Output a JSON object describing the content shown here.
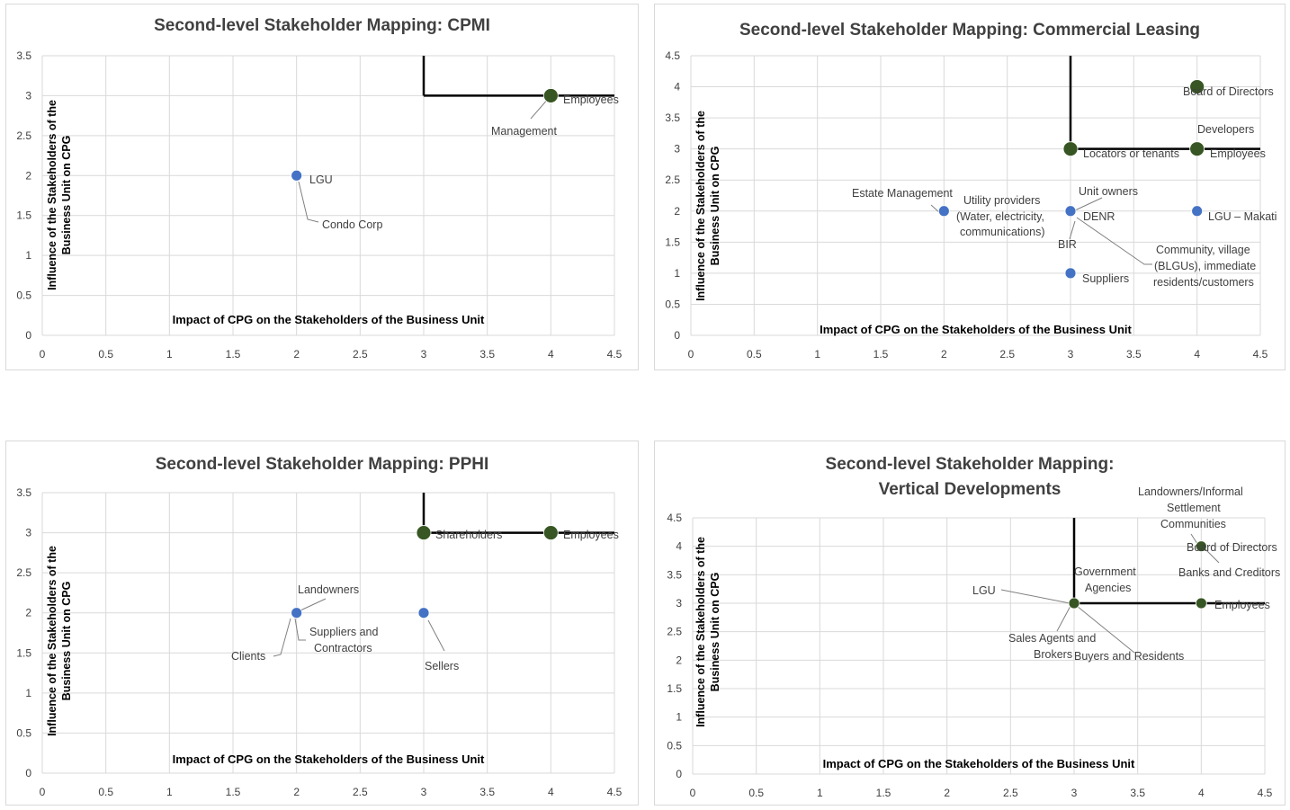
{
  "chart_data": [
    {
      "type": "scatter",
      "title": "Second-level Stakeholder Mapping: CPMI",
      "xlabel": "Impact of CPG on the Stakeholders of the Business Unit",
      "ylabel": [
        "Influence of the Stakeholders of the",
        "Business Unit on CPG"
      ],
      "xlim": [
        0,
        4.5
      ],
      "ylim": [
        0,
        3.5
      ],
      "xticks": [
        "0",
        "0.5",
        "1",
        "1.5",
        "2",
        "2.5",
        "3",
        "3.5",
        "4",
        "4.5"
      ],
      "yticks": [
        "0",
        "0.5",
        "1",
        "1.5",
        "2",
        "2.5",
        "3",
        "3.5"
      ],
      "grid": true,
      "quadrant_lines": [
        {
          "type": "v",
          "at": 3,
          "from": 3,
          "to": 3.5
        },
        {
          "type": "h",
          "at": 3,
          "from": 3,
          "to": 4.5
        }
      ],
      "points": [
        {
          "x": 2,
          "y": 2,
          "group": "blue"
        },
        {
          "x": 4,
          "y": 3,
          "group": "green"
        }
      ],
      "labels": [
        {
          "text": "LGU",
          "x": 2,
          "y": 2
        },
        {
          "text": "Condo Corp",
          "x": 2,
          "y": 2
        },
        {
          "text": "Employees",
          "x": 4,
          "y": 3
        },
        {
          "text": "Management",
          "x": 4,
          "y": 3
        }
      ]
    },
    {
      "type": "scatter",
      "title": "Second-level Stakeholder Mapping: Commercial Leasing",
      "xlabel": "Impact of CPG on the Stakeholders of the Business Unit",
      "ylabel": [
        "Influence of the Stakeholders of the",
        "Business Unit on CPG"
      ],
      "xlim": [
        0,
        4.5
      ],
      "ylim": [
        0,
        4.5
      ],
      "xticks": [
        "0",
        "0.5",
        "1",
        "1.5",
        "2",
        "2.5",
        "3",
        "3.5",
        "4",
        "4.5"
      ],
      "yticks": [
        "0",
        "0.5",
        "1",
        "1.5",
        "2",
        "2.5",
        "3",
        "3.5",
        "4",
        "4.5"
      ],
      "grid": true,
      "quadrant_lines": [
        {
          "type": "v",
          "at": 3,
          "from": 3,
          "to": 4.5
        },
        {
          "type": "h",
          "at": 3,
          "from": 3,
          "to": 4.5
        }
      ],
      "points": [
        {
          "x": 4,
          "y": 4,
          "group": "green"
        },
        {
          "x": 3,
          "y": 3,
          "group": "green"
        },
        {
          "x": 4,
          "y": 3,
          "group": "green"
        },
        {
          "x": 2,
          "y": 2,
          "group": "blue"
        },
        {
          "x": 3,
          "y": 2,
          "group": "blue"
        },
        {
          "x": 4,
          "y": 2,
          "group": "blue"
        },
        {
          "x": 3,
          "y": 1,
          "group": "blue"
        }
      ],
      "labels": [
        {
          "text": "Board of Directors",
          "x": 4,
          "y": 4
        },
        {
          "text": "Developers",
          "x": 4,
          "y": 3
        },
        {
          "text": "Locators or tenants",
          "x": 3,
          "y": 3
        },
        {
          "text": "Employees",
          "x": 4,
          "y": 3
        },
        {
          "text": "Estate Management",
          "x": 2,
          "y": 2
        },
        {
          "text": "Utility providers",
          "x": 3,
          "y": 2
        },
        {
          "text": "(Water, electricity,",
          "x": 3,
          "y": 2
        },
        {
          "text": "communications)",
          "x": 3,
          "y": 2
        },
        {
          "text": "Unit owners",
          "x": 3,
          "y": 2
        },
        {
          "text": "DENR",
          "x": 3,
          "y": 2
        },
        {
          "text": "BIR",
          "x": 3,
          "y": 2
        },
        {
          "text": "LGU – Makati",
          "x": 4,
          "y": 2
        },
        {
          "text": "Community, village",
          "x": 3,
          "y": 2
        },
        {
          "text": "(BLGUs), immediate",
          "x": 3,
          "y": 2
        },
        {
          "text": "residents/customers",
          "x": 3,
          "y": 2
        },
        {
          "text": "Suppliers",
          "x": 3,
          "y": 1
        }
      ]
    },
    {
      "type": "scatter",
      "title": "Second-level Stakeholder Mapping: PPHI",
      "xlabel": "Impact of CPG on the Stakeholders of the Business Unit",
      "ylabel": [
        "Influence of the Stakeholders of the",
        "Business Unit on CPG"
      ],
      "xlim": [
        0,
        4.5
      ],
      "ylim": [
        0,
        3.5
      ],
      "xticks": [
        "0",
        "0.5",
        "1",
        "1.5",
        "2",
        "2.5",
        "3",
        "3.5",
        "4",
        "4.5"
      ],
      "yticks": [
        "0",
        "0.5",
        "1",
        "1.5",
        "2",
        "2.5",
        "3",
        "3.5"
      ],
      "grid": true,
      "quadrant_lines": [
        {
          "type": "v",
          "at": 3,
          "from": 3,
          "to": 3.5
        },
        {
          "type": "h",
          "at": 3,
          "from": 3,
          "to": 4.5
        }
      ],
      "points": [
        {
          "x": 3,
          "y": 3,
          "group": "green"
        },
        {
          "x": 4,
          "y": 3,
          "group": "green"
        },
        {
          "x": 2,
          "y": 2,
          "group": "blue"
        },
        {
          "x": 3,
          "y": 2,
          "group": "blue"
        }
      ],
      "labels": [
        {
          "text": "Shareholders",
          "x": 3,
          "y": 3
        },
        {
          "text": "Employees",
          "x": 4,
          "y": 3
        },
        {
          "text": "Landowners",
          "x": 2,
          "y": 2
        },
        {
          "text": "Suppliers and",
          "x": 2,
          "y": 2
        },
        {
          "text": "Contractors",
          "x": 2,
          "y": 2
        },
        {
          "text": "Clients",
          "x": 2,
          "y": 2
        },
        {
          "text": "Sellers",
          "x": 3,
          "y": 2
        }
      ]
    },
    {
      "type": "scatter",
      "title": [
        "Second-level Stakeholder Mapping:",
        "Vertical Developments"
      ],
      "xlabel": "Impact of CPG on the Stakeholders of the Business Unit",
      "ylabel": [
        "Influence of the Stakeholders of the",
        "Business Unit on CPG"
      ],
      "xlim": [
        0,
        4.5
      ],
      "ylim": [
        0,
        4.5
      ],
      "xticks": [
        "0",
        "0.5",
        "1",
        "1.5",
        "2",
        "2.5",
        "3",
        "3.5",
        "4",
        "4.5"
      ],
      "yticks": [
        "0",
        "0.5",
        "1",
        "1.5",
        "2",
        "2.5",
        "3",
        "3.5",
        "4",
        "4.5"
      ],
      "grid": true,
      "quadrant_lines": [
        {
          "type": "v",
          "at": 3,
          "from": 3,
          "to": 4.5
        },
        {
          "type": "h",
          "at": 3,
          "from": 3,
          "to": 4.5
        }
      ],
      "points": [
        {
          "x": 4,
          "y": 4,
          "group": "green"
        },
        {
          "x": 3,
          "y": 3,
          "group": "green"
        },
        {
          "x": 4,
          "y": 3,
          "group": "green"
        }
      ],
      "labels": [
        {
          "text": "Landowners/Informal",
          "x": 4,
          "y": 4
        },
        {
          "text": "Settlement",
          "x": 4,
          "y": 4
        },
        {
          "text": "Communities",
          "x": 4,
          "y": 4
        },
        {
          "text": "Board of Directors",
          "x": 4,
          "y": 4
        },
        {
          "text": "Banks and Creditors",
          "x": 4,
          "y": 4
        },
        {
          "text": "Government",
          "x": 3,
          "y": 3
        },
        {
          "text": "Agencies",
          "x": 3,
          "y": 3
        },
        {
          "text": "LGU",
          "x": 3,
          "y": 3
        },
        {
          "text": "Employees",
          "x": 4,
          "y": 3
        },
        {
          "text": "Sales Agents and",
          "x": 3,
          "y": 3
        },
        {
          "text": "Brokers",
          "x": 3,
          "y": 3
        },
        {
          "text": "Buyers and Residents",
          "x": 3,
          "y": 3
        }
      ]
    }
  ],
  "colors": {
    "blue": "#4472c4",
    "green": "#375623",
    "grid": "#d9d9d9",
    "axis_text": "#404040",
    "quadrant_line": "#000000",
    "leader": "#808080",
    "frame": "#d9d9d9"
  }
}
